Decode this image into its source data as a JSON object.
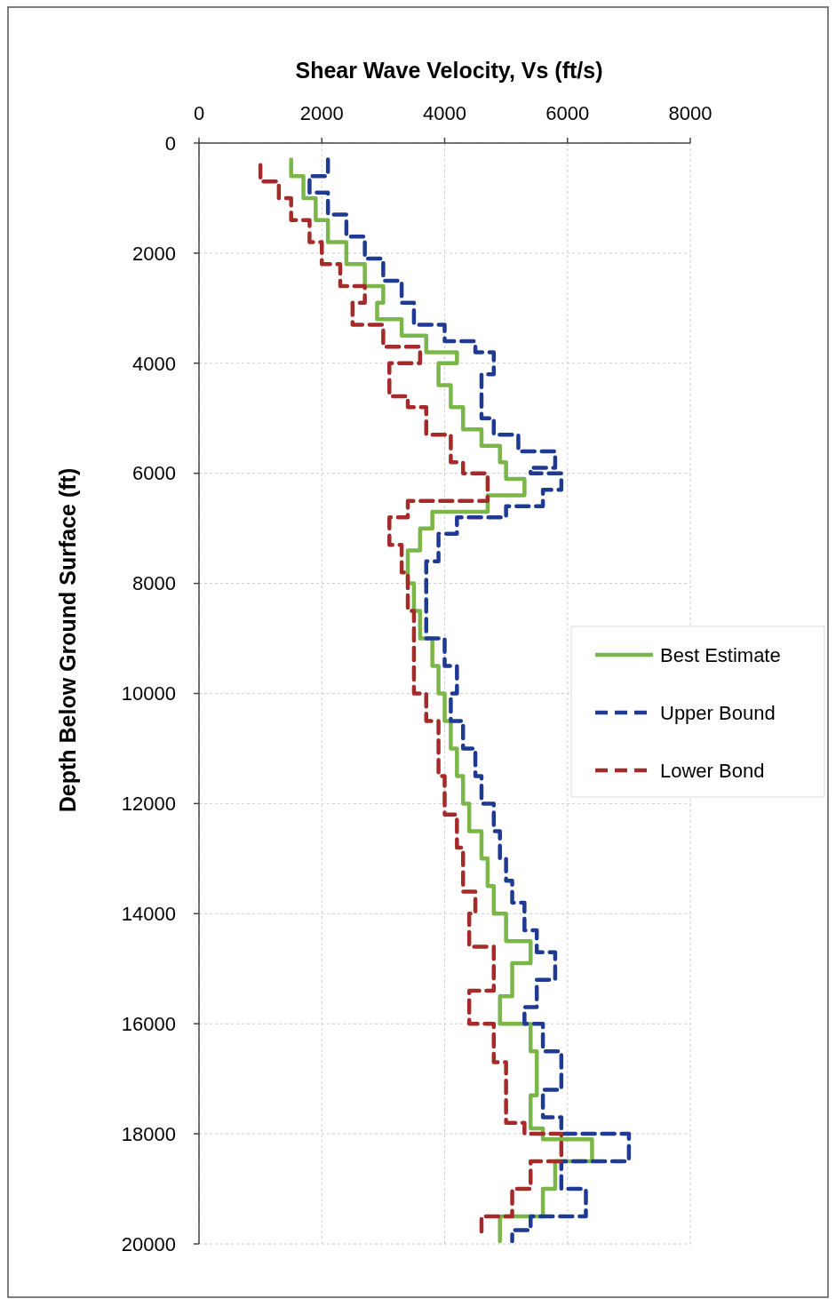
{
  "chart_data": {
    "type": "line",
    "xlabel": "Shear Wave Velocity, Vs (ft/s)",
    "ylabel": "Depth Below Ground Surface (ft)",
    "xlim": [
      0,
      8000
    ],
    "xticks": [
      0,
      2000,
      4000,
      6000,
      8000
    ],
    "ylim": [
      20000,
      0
    ],
    "yticks": [
      0,
      2000,
      4000,
      6000,
      8000,
      10000,
      12000,
      14000,
      16000,
      18000,
      20000
    ],
    "grid": true,
    "legend": "right",
    "series": [
      {
        "name": "Best Estimate",
        "color": "#7ab648",
        "line_style": "solid",
        "x": [
          1500,
          1500,
          1700,
          1700,
          1900,
          1900,
          2100,
          2100,
          2400,
          2400,
          2700,
          2700,
          3000,
          3000,
          2900,
          2900,
          3300,
          3300,
          3700,
          3700,
          4200,
          4200,
          3900,
          3900,
          4100,
          4100,
          4300,
          4300,
          4600,
          4600,
          4900,
          4900,
          5000,
          5000,
          5300,
          5300,
          4700,
          4700,
          3800,
          3800,
          3600,
          3600,
          3400,
          3400,
          3500,
          3500,
          3600,
          3600,
          3800,
          3800,
          3900,
          3900,
          4000,
          4000,
          4100,
          4100,
          4200,
          4200,
          4300,
          4300,
          4400,
          4400,
          4600,
          4600,
          4700,
          4700,
          4800,
          4800,
          5000,
          5000,
          5400,
          5400,
          5100,
          5100,
          4900,
          4900,
          5400,
          5400,
          5500,
          5500,
          5400,
          5400,
          5600,
          5600,
          6400,
          6400,
          5800,
          5800,
          5600,
          5600,
          4900,
          4900
        ],
        "values": [
          300,
          600,
          600,
          1000,
          1000,
          1400,
          1400,
          1800,
          1800,
          2200,
          2200,
          2600,
          2600,
          2900,
          2900,
          3200,
          3200,
          3500,
          3500,
          3800,
          3800,
          4000,
          4000,
          4400,
          4400,
          4800,
          4800,
          5200,
          5200,
          5500,
          5500,
          5800,
          5800,
          6100,
          6100,
          6400,
          6400,
          6700,
          6700,
          7000,
          7000,
          7400,
          7400,
          8000,
          8000,
          8500,
          8500,
          9000,
          9000,
          9500,
          9500,
          10000,
          10000,
          10500,
          10500,
          11000,
          11000,
          11500,
          11500,
          12000,
          12000,
          12500,
          12500,
          13000,
          13000,
          13500,
          13500,
          14000,
          14000,
          14500,
          14500,
          14900,
          14900,
          15500,
          15500,
          16000,
          16000,
          16500,
          16500,
          17300,
          17300,
          17900,
          17900,
          18100,
          18100,
          18500,
          18500,
          19000,
          19000,
          19500,
          19500,
          19950
        ]
      },
      {
        "name": "Upper Bound",
        "color": "#1f3a93",
        "line_style": "dashed",
        "x": [
          2100,
          2100,
          1800,
          1800,
          2100,
          2100,
          2400,
          2400,
          2700,
          2700,
          3000,
          3000,
          3300,
          3300,
          3500,
          3500,
          4000,
          4000,
          4500,
          4500,
          4800,
          4800,
          4600,
          4600,
          4800,
          4800,
          5200,
          5200,
          5800,
          5800,
          5400,
          5400,
          5900,
          5900,
          5600,
          5600,
          5000,
          5000,
          4200,
          4200,
          3900,
          3900,
          3700,
          3700,
          3700,
          3700,
          4000,
          4000,
          4200,
          4200,
          4100,
          4100,
          4300,
          4300,
          4500,
          4500,
          4600,
          4600,
          4800,
          4800,
          4900,
          4900,
          5000,
          5000,
          5100,
          5100,
          5300,
          5300,
          5500,
          5500,
          5800,
          5800,
          5500,
          5500,
          5300,
          5300,
          5600,
          5600,
          5900,
          5900,
          5600,
          5600,
          5900,
          5900,
          7000,
          7000,
          5900,
          5900,
          6300,
          6300,
          5400,
          5400,
          5100,
          5100
        ],
        "values": [
          300,
          600,
          600,
          900,
          900,
          1300,
          1300,
          1700,
          1700,
          2100,
          2100,
          2500,
          2500,
          2900,
          2900,
          3300,
          3300,
          3600,
          3600,
          3800,
          3800,
          4200,
          4200,
          5000,
          5000,
          5300,
          5300,
          5600,
          5600,
          5900,
          5900,
          6000,
          6000,
          6300,
          6300,
          6600,
          6600,
          6800,
          6800,
          7100,
          7100,
          7600,
          7600,
          8000,
          8000,
          9000,
          9000,
          9500,
          9500,
          10000,
          10000,
          10500,
          10500,
          11000,
          11000,
          11500,
          11500,
          12000,
          12000,
          12500,
          12500,
          13000,
          13000,
          13400,
          13400,
          13800,
          13800,
          14300,
          14300,
          14700,
          14700,
          15200,
          15200,
          15700,
          15700,
          16000,
          16000,
          16500,
          16500,
          17200,
          17200,
          17700,
          17700,
          18000,
          18000,
          18500,
          18500,
          19000,
          19000,
          19500,
          19500,
          19750,
          19750,
          19950
        ]
      },
      {
        "name": "Lower Bond",
        "color": "#a52a2a",
        "line_style": "dashed",
        "x": [
          1000,
          1000,
          1300,
          1300,
          1500,
          1500,
          1800,
          1800,
          2000,
          2000,
          2300,
          2300,
          2700,
          2700,
          2500,
          2500,
          3000,
          3000,
          3600,
          3600,
          3100,
          3100,
          3400,
          3400,
          3700,
          3700,
          4100,
          4100,
          4300,
          4300,
          4700,
          4700,
          3400,
          3400,
          3100,
          3100,
          3300,
          3300,
          3400,
          3400,
          3500,
          3500,
          3500,
          3500,
          3700,
          3700,
          3900,
          3900,
          4000,
          4000,
          4200,
          4200,
          4300,
          4300,
          4500,
          4500,
          4400,
          4400,
          4800,
          4800,
          4400,
          4400,
          4800,
          4800,
          5000,
          5000,
          5300,
          5300,
          5900,
          5900,
          5400,
          5400,
          5100,
          5100,
          4600,
          4600
        ],
        "values": [
          400,
          700,
          700,
          1000,
          1000,
          1400,
          1400,
          1800,
          1800,
          2200,
          2200,
          2600,
          2600,
          2900,
          2900,
          3300,
          3300,
          3700,
          3700,
          4000,
          4000,
          4600,
          4600,
          4800,
          4800,
          5300,
          5300,
          5800,
          5800,
          6000,
          6000,
          6500,
          6500,
          6800,
          6800,
          7300,
          7300,
          7800,
          7800,
          8500,
          8500,
          9000,
          9000,
          10000,
          10000,
          10500,
          10500,
          11500,
          11500,
          12200,
          12200,
          12800,
          12800,
          13600,
          13600,
          14000,
          14000,
          14600,
          14600,
          15400,
          15400,
          16000,
          16000,
          16700,
          16700,
          17800,
          17800,
          18000,
          18000,
          18500,
          18500,
          19000,
          19000,
          19500,
          19500,
          19800
        ]
      }
    ]
  }
}
